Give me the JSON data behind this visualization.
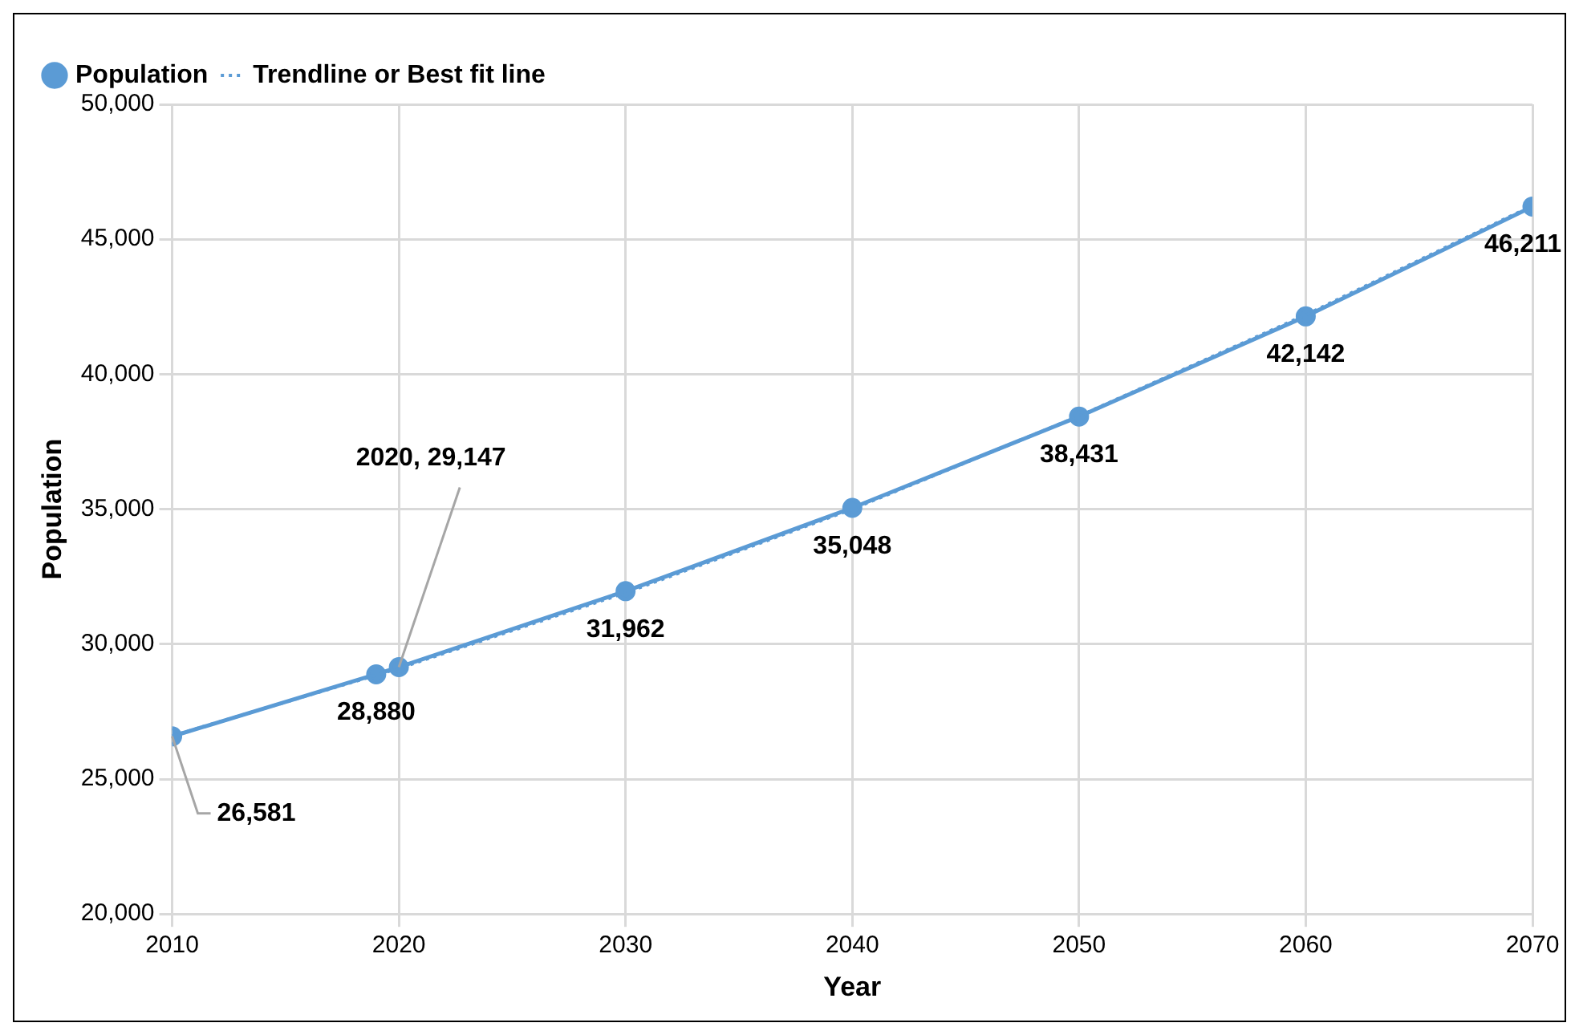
{
  "chart_data": {
    "type": "line",
    "xlabel": "Year",
    "ylabel": "Population",
    "x": [
      2010,
      2019,
      2020,
      2030,
      2040,
      2050,
      2060,
      2070
    ],
    "series": [
      {
        "name": "Population",
        "color": "#5b9bd5",
        "marker": "circle",
        "line_style": "solid",
        "values": [
          26581,
          28880,
          29147,
          31962,
          35048,
          38431,
          42142,
          46211
        ],
        "value_labels": [
          null,
          "28,880",
          null,
          "31,962",
          "35,048",
          "38,431",
          "42,142",
          "46,211"
        ]
      },
      {
        "name": "Trendline or Best fit line",
        "type": "line",
        "color": "#5b9bd5",
        "marker": "none",
        "line_style": "dotted",
        "x": [
          2010,
          2020,
          2030,
          2040,
          2050,
          2060,
          2070
        ],
        "values": [
          26600,
          29100,
          31900,
          35000,
          38450,
          42200,
          46250
        ]
      }
    ],
    "annotations": [
      {
        "text": "26,581",
        "x": 2010,
        "y": 26581
      },
      {
        "text": "2020, 29,147",
        "x": 2020,
        "y": 29147
      }
    ],
    "xlim": [
      2010,
      2070
    ],
    "xticks": [
      2010,
      2020,
      2030,
      2040,
      2050,
      2060,
      2070
    ],
    "ylim": [
      20000,
      50000
    ],
    "yticks": [
      {
        "value": 20000,
        "label": "20,000"
      },
      {
        "value": 25000,
        "label": "25,000"
      },
      {
        "value": 30000,
        "label": "30,000"
      },
      {
        "value": 35000,
        "label": "35,000"
      },
      {
        "value": 40000,
        "label": "40,000"
      },
      {
        "value": 45000,
        "label": "45,000"
      },
      {
        "value": 50000,
        "label": "50,000"
      }
    ],
    "grid": true,
    "legend": "top left"
  }
}
